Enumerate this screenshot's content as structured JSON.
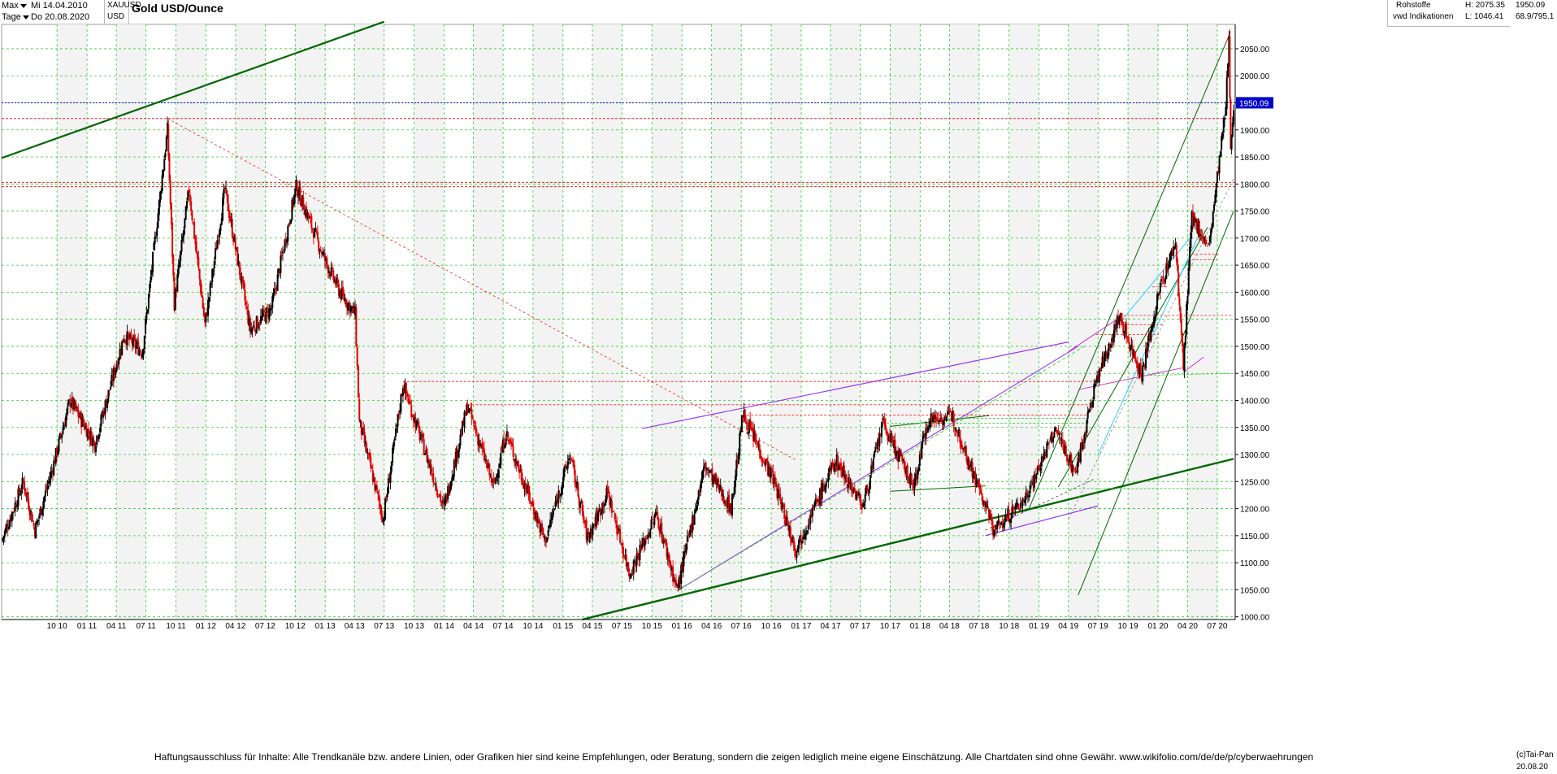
{
  "toolbar": {
    "range_label": "Max",
    "date_from": "Mi 14.04.2010",
    "interval_label": "Tage",
    "date_to": "Do 20.08.2020",
    "symbol": "XAUUSD",
    "currency": "USD",
    "title": "Gold USD/Ounce"
  },
  "info": {
    "category": "Rohstoffe",
    "source": "vwd Indikationen",
    "high": "H: 2075.35",
    "low": "L: 1046.41",
    "last": "1950.09",
    "ratio": "68.9/795.1"
  },
  "footer": {
    "disclaimer": "Haftungsausschluss für Inhalte: Alle Trendkanäle bzw. andere Linien, oder Grafiken hier sind keine Empfehlungen, oder Beratung, sondern die zeigen lediglich meine eigene Einschätzung. Alle Chartdaten sind ohne Gewähr.  www.wikifolio.com/de/de/p/cyberwaehrungen",
    "copyright": "(c)Tai-Pan",
    "last_date": "20.08.20"
  },
  "colors": {
    "up_candle": "#000000",
    "down_candle": "#e00000",
    "grid": "#33cc33",
    "price_tag": "#0000cc",
    "trend_green": "#006600",
    "trend_purple": "#9933ff",
    "trend_cyan": "#33ccff",
    "support_red": "#ee2222"
  },
  "chart_data": {
    "type": "candlestick",
    "title": "Gold USD/Ounce",
    "x_range": [
      "2010-04-14",
      "2020-08-20"
    ],
    "x_ticks": [
      "10 10",
      "01 11",
      "04 11",
      "07 11",
      "10 11",
      "01 12",
      "04 12",
      "07 12",
      "10 12",
      "01 13",
      "04 13",
      "07 13",
      "10 13",
      "01 14",
      "04 14",
      "07 14",
      "10 14",
      "01 15",
      "04 15",
      "07 15",
      "10 15",
      "01 16",
      "04 16",
      "07 16",
      "10 16",
      "01 17",
      "04 17",
      "07 17",
      "10 17",
      "01 18",
      "04 18",
      "07 18",
      "10 18",
      "01 19",
      "04 19",
      "07 19",
      "10 19",
      "01 20",
      "04 20",
      "07 20"
    ],
    "y_ticks": [
      1000,
      1050,
      1100,
      1150,
      1200,
      1250,
      1300,
      1350,
      1400,
      1450,
      1500,
      1550,
      1600,
      1650,
      1700,
      1750,
      1800,
      1850,
      1900,
      1950,
      2000,
      2050
    ],
    "y_tick_labels": [
      "1000.00",
      "1050.00",
      "1100.00",
      "1150.00",
      "1200.00",
      "1250.00",
      "1300.00",
      "1350.00",
      "1400.00",
      "1450.00",
      "1500.00",
      "1550.00",
      "1600.00",
      "1650.00",
      "1700.00",
      "1750.00",
      "1800.00",
      "1850.00",
      "1900.00",
      "1950.00",
      "2000.00",
      "2050.00"
    ],
    "ylim": [
      995,
      2095
    ],
    "last_price": 1950.09,
    "anchors": [
      {
        "x": "2010-04-14",
        "y": 1140
      },
      {
        "x": "2010-06-20",
        "y": 1250
      },
      {
        "x": "2010-07-25",
        "y": 1160
      },
      {
        "x": "2010-09-15",
        "y": 1270
      },
      {
        "x": "2010-11-10",
        "y": 1400
      },
      {
        "x": "2011-01-25",
        "y": 1320
      },
      {
        "x": "2011-04-25",
        "y": 1520
      },
      {
        "x": "2011-06-20",
        "y": 1490
      },
      {
        "x": "2011-09-05",
        "y": 1900
      },
      {
        "x": "2011-09-26",
        "y": 1580
      },
      {
        "x": "2011-11-10",
        "y": 1790
      },
      {
        "x": "2011-12-29",
        "y": 1540
      },
      {
        "x": "2012-02-28",
        "y": 1790
      },
      {
        "x": "2012-05-16",
        "y": 1530
      },
      {
        "x": "2012-07-20",
        "y": 1570
      },
      {
        "x": "2012-10-04",
        "y": 1795
      },
      {
        "x": "2012-12-31",
        "y": 1660
      },
      {
        "x": "2013-02-15",
        "y": 1600
      },
      {
        "x": "2013-04-03",
        "y": 1560
      },
      {
        "x": "2013-04-16",
        "y": 1360
      },
      {
        "x": "2013-06-28",
        "y": 1180
      },
      {
        "x": "2013-08-28",
        "y": 1430
      },
      {
        "x": "2013-12-31",
        "y": 1200
      },
      {
        "x": "2014-03-14",
        "y": 1390
      },
      {
        "x": "2014-06-02",
        "y": 1240
      },
      {
        "x": "2014-07-10",
        "y": 1340
      },
      {
        "x": "2014-11-07",
        "y": 1140
      },
      {
        "x": "2015-01-22",
        "y": 1300
      },
      {
        "x": "2015-03-17",
        "y": 1145
      },
      {
        "x": "2015-05-18",
        "y": 1230
      },
      {
        "x": "2015-07-24",
        "y": 1080
      },
      {
        "x": "2015-10-15",
        "y": 1190
      },
      {
        "x": "2015-12-17",
        "y": 1050
      },
      {
        "x": "2016-03-11",
        "y": 1280
      },
      {
        "x": "2016-05-31",
        "y": 1200
      },
      {
        "x": "2016-07-06",
        "y": 1375
      },
      {
        "x": "2016-10-10",
        "y": 1250
      },
      {
        "x": "2016-12-15",
        "y": 1125
      },
      {
        "x": "2017-04-17",
        "y": 1290
      },
      {
        "x": "2017-07-10",
        "y": 1205
      },
      {
        "x": "2017-09-08",
        "y": 1357
      },
      {
        "x": "2017-12-12",
        "y": 1240
      },
      {
        "x": "2018-01-25",
        "y": 1365
      },
      {
        "x": "2018-04-11",
        "y": 1370
      },
      {
        "x": "2018-08-16",
        "y": 1160
      },
      {
        "x": "2018-11-15",
        "y": 1215
      },
      {
        "x": "2019-02-20",
        "y": 1345
      },
      {
        "x": "2019-04-23",
        "y": 1266
      },
      {
        "x": "2019-06-25",
        "y": 1435
      },
      {
        "x": "2019-09-04",
        "y": 1555
      },
      {
        "x": "2019-11-12",
        "y": 1447
      },
      {
        "x": "2020-01-08",
        "y": 1610
      },
      {
        "x": "2020-02-24",
        "y": 1690
      },
      {
        "x": "2020-03-19",
        "y": 1460
      },
      {
        "x": "2020-04-14",
        "y": 1740
      },
      {
        "x": "2020-06-05",
        "y": 1680
      },
      {
        "x": "2020-07-27",
        "y": 1940
      },
      {
        "x": "2020-08-06",
        "y": 2070
      },
      {
        "x": "2020-08-11",
        "y": 1870
      },
      {
        "x": "2020-08-20",
        "y": 1950
      }
    ],
    "horizontal_lines": [
      {
        "y": 1950.09,
        "style": "dotted",
        "color": "#0000cc"
      },
      {
        "y": 1921,
        "style": "dashed",
        "color": "#ee2222"
      },
      {
        "y": 1803,
        "style": "dashed",
        "color": "#ee2222"
      },
      {
        "y": 1795,
        "style": "dashed",
        "color": "#ee2222"
      }
    ]
  }
}
